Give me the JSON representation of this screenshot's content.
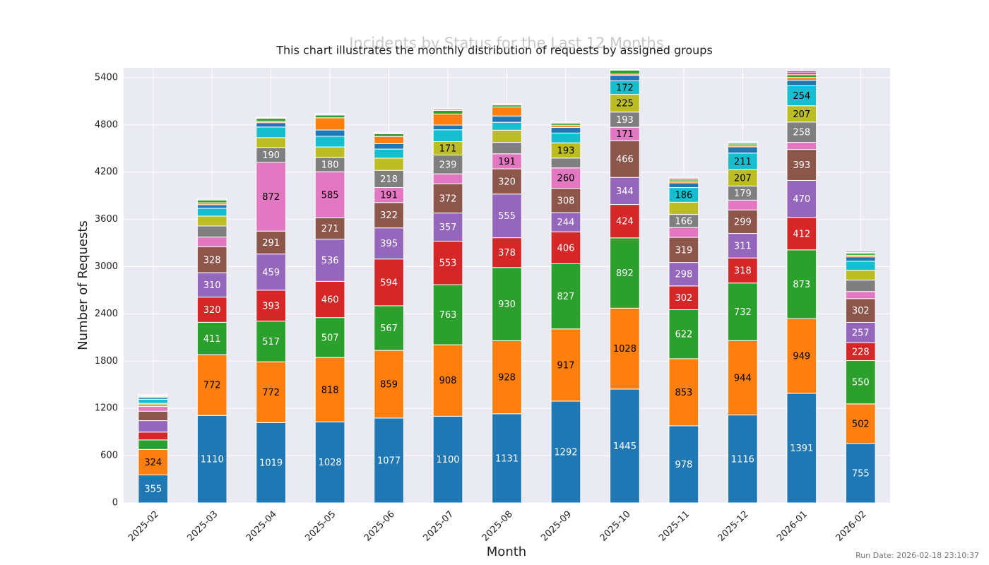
{
  "chart_data": {
    "type": "stacked_bar",
    "title": "Incidents by Status for the Last 12 Months",
    "subtitle": "This chart illustrates the monthly distribution of requests by assigned groups",
    "x_label": "Month",
    "y_label": "Number of Requests",
    "footnote": "Run Date: 2026-02-18 23:10:37",
    "categories": [
      "2025-02",
      "2025-03",
      "2025-04",
      "2025-05",
      "2025-06",
      "2025-07",
      "2025-08",
      "2025-09",
      "2025-10",
      "2025-11",
      "2025-12",
      "2026-01",
      "2026-02"
    ],
    "series": [
      {
        "color": "#1f77b4",
        "values": [
          355,
          1110,
          1019,
          1028,
          1077,
          1100,
          1131,
          1292,
          1445,
          978,
          1116,
          1391,
          755
        ]
      },
      {
        "color": "#ff7f0e",
        "values": [
          324,
          772,
          772,
          818,
          859,
          908,
          928,
          917,
          1028,
          853,
          944,
          949,
          502
        ]
      },
      {
        "color": "#2ca02c",
        "values": [
          120,
          411,
          517,
          507,
          567,
          763,
          930,
          827,
          892,
          622,
          732,
          873,
          550
        ]
      },
      {
        "color": "#d62728",
        "values": [
          100,
          320,
          393,
          460,
          594,
          553,
          378,
          406,
          424,
          302,
          318,
          412,
          228
        ]
      },
      {
        "color": "#9467bd",
        "values": [
          145,
          310,
          459,
          536,
          395,
          357,
          555,
          244,
          344,
          298,
          311,
          470,
          257
        ]
      },
      {
        "color": "#8c564b",
        "values": [
          120,
          328,
          291,
          271,
          322,
          372,
          320,
          308,
          466,
          319,
          299,
          393,
          302
        ]
      },
      {
        "color": "#e377c2",
        "values": [
          60,
          125,
          872,
          585,
          191,
          125,
          191,
          260,
          171,
          125,
          125,
          90,
          90
        ]
      },
      {
        "color": "#7f7f7f",
        "values": [
          20,
          140,
          190,
          180,
          218,
          239,
          145,
          125,
          193,
          166,
          179,
          258,
          145
        ]
      },
      {
        "color": "#bcbd22",
        "values": [
          20,
          125,
          125,
          135,
          155,
          171,
          155,
          193,
          225,
          155,
          207,
          207,
          125
        ]
      },
      {
        "color": "#17becf",
        "values": [
          50,
          100,
          135,
          135,
          115,
          150,
          100,
          125,
          172,
          186,
          211,
          254,
          115
        ]
      },
      {
        "color": "#1f77b4",
        "values": [
          20,
          45,
          55,
          80,
          70,
          60,
          80,
          70,
          70,
          60,
          80,
          70,
          55
        ]
      },
      {
        "color": "#ff7f0e",
        "values": [
          15,
          25,
          20,
          155,
          90,
          140,
          115,
          25,
          15,
          25,
          25,
          35,
          20
        ]
      },
      {
        "color": "#2ca02c",
        "values": [
          10,
          35,
          35,
          35,
          35,
          45,
          25,
          20,
          50,
          20,
          20,
          35,
          20
        ]
      },
      {
        "color": "#d62728",
        "values": [
          10,
          10,
          10,
          10,
          10,
          15,
          10,
          15,
          5,
          15,
          10,
          25,
          15
        ]
      },
      {
        "color": "#9467bd",
        "values": [
          10,
          10,
          10,
          10,
          10,
          10,
          10,
          10,
          5,
          10,
          10,
          25,
          15
        ]
      }
    ],
    "ylim": [
      0,
      5525
    ],
    "yticks": [
      0,
      600,
      1200,
      1800,
      2400,
      3000,
      3600,
      4200,
      4800,
      5400
    ],
    "grid": true
  }
}
